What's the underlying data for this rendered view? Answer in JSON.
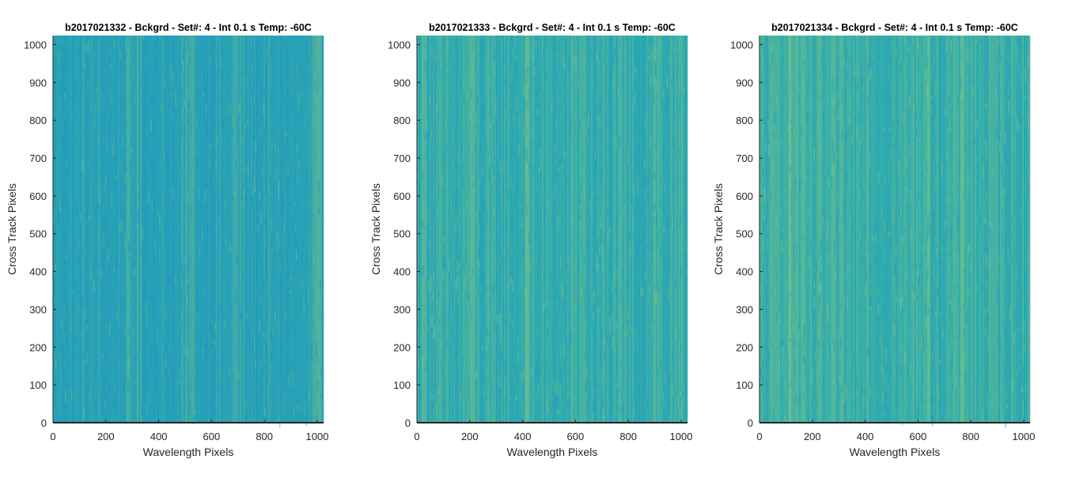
{
  "chart_data": [
    {
      "type": "heatmap",
      "title": "b2017021332 - Bckgrd - Set#: 4 - Int 0.1 s Temp: -60C",
      "xlabel": "Wavelength Pixels",
      "ylabel": "Cross Track Pixels",
      "xlim": [
        0,
        1024
      ],
      "ylim": [
        0,
        1024
      ],
      "xticks": [
        0,
        200,
        400,
        600,
        800,
        1000
      ],
      "yticks": [
        0,
        100,
        200,
        300,
        400,
        500,
        600,
        700,
        800,
        900,
        1000
      ],
      "grid": false,
      "colormap": "parula",
      "mean_level": 0.42,
      "brighter_columns": [
        310,
        520,
        690,
        1000
      ],
      "colors": {
        "low": "#1995c3",
        "mid": "#2aa3b4",
        "high": "#8bc77d"
      }
    },
    {
      "type": "heatmap",
      "title": "b2017021333 - Bckgrd - Set#: 4 - Int 0.1 s Temp: -60C",
      "xlabel": "Wavelength Pixels",
      "ylabel": "Cross Track Pixels",
      "xlim": [
        0,
        1024
      ],
      "ylim": [
        0,
        1024
      ],
      "xticks": [
        0,
        200,
        400,
        600,
        800,
        1000
      ],
      "yticks": [
        0,
        100,
        200,
        300,
        400,
        500,
        600,
        700,
        800,
        900,
        1000
      ],
      "grid": false,
      "colormap": "parula",
      "mean_level": 0.5,
      "brighter_columns": [
        30,
        200,
        420,
        620,
        900
      ],
      "colors": {
        "low": "#1995c3",
        "mid": "#2eaab0",
        "high": "#8bc77d"
      }
    },
    {
      "type": "heatmap",
      "title": "b2017021334 - Bckgrd - Set#: 4 - Int 0.1 s Temp: -60C",
      "xlabel": "Wavelength Pixels",
      "ylabel": "Cross Track Pixels",
      "xlim": [
        0,
        1024
      ],
      "ylim": [
        0,
        1024
      ],
      "xticks": [
        0,
        200,
        400,
        600,
        800,
        1000
      ],
      "yticks": [
        0,
        100,
        200,
        300,
        400,
        500,
        600,
        700,
        800,
        900,
        1000
      ],
      "grid": false,
      "colormap": "parula",
      "mean_level": 0.52,
      "brighter_columns": [
        90,
        130,
        400,
        620,
        780
      ],
      "colors": {
        "low": "#1995c3",
        "mid": "#33adac",
        "high": "#8bc77d"
      }
    }
  ]
}
